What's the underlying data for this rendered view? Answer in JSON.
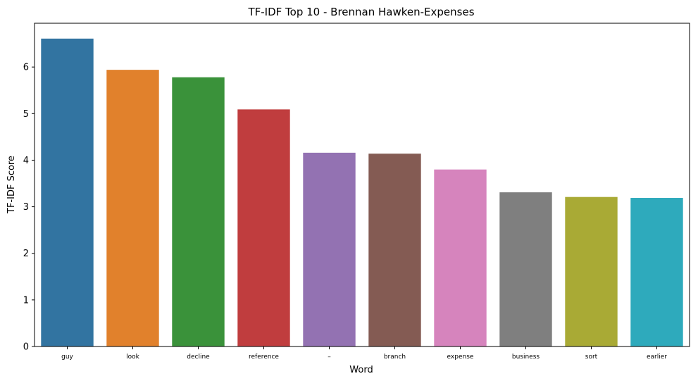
{
  "chart_data": {
    "type": "bar",
    "title": "TF-IDF Top 10 - Brennan Hawken-Expenses",
    "xlabel": "Word",
    "ylabel": "TF-IDF Score",
    "categories": [
      "guy",
      "look",
      "decline",
      "reference",
      "–",
      "branch",
      "expense",
      "business",
      "sort",
      "earlier"
    ],
    "values": [
      6.61,
      5.94,
      5.78,
      5.09,
      4.16,
      4.14,
      3.8,
      3.31,
      3.21,
      3.19
    ],
    "colors": [
      "#3274a1",
      "#e1812c",
      "#3a923a",
      "#c03d3e",
      "#9372b2",
      "#845b53",
      "#d684bd",
      "#7f7f7f",
      "#a9aa35",
      "#2eaabc"
    ],
    "ylim": [
      0,
      6.94
    ],
    "yticks": [
      0,
      1,
      2,
      3,
      4,
      5,
      6
    ],
    "grid": false,
    "legend": "none"
  }
}
